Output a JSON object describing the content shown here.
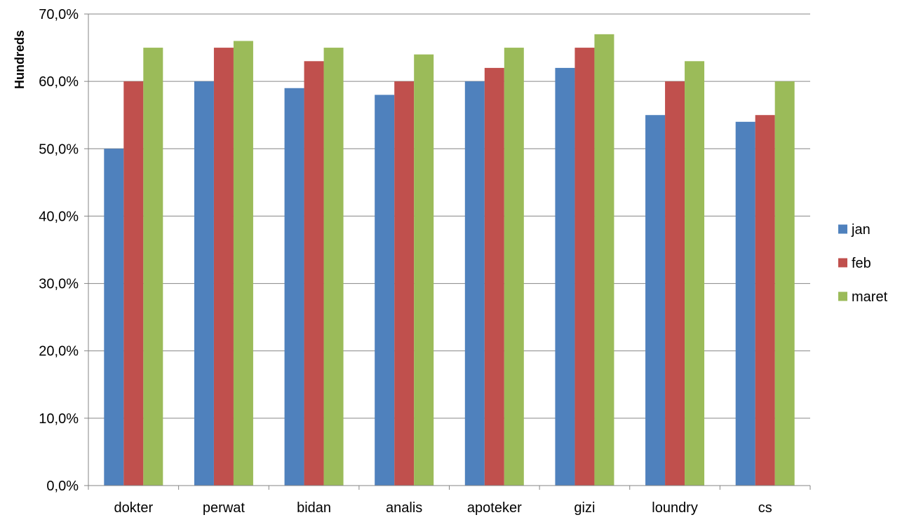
{
  "chart_data": {
    "type": "bar",
    "title": "",
    "xlabel": "",
    "ylabel": "Hundreds",
    "ylim": [
      0,
      70
    ],
    "y_ticks": [
      {
        "value": 0,
        "label": "0,0%"
      },
      {
        "value": 10,
        "label": "10,0%"
      },
      {
        "value": 20,
        "label": "20,0%"
      },
      {
        "value": 30,
        "label": "30,0%"
      },
      {
        "value": 40,
        "label": "40,0%"
      },
      {
        "value": 50,
        "label": "50,0%"
      },
      {
        "value": 60,
        "label": "60,0%"
      },
      {
        "value": 70,
        "label": "70,0%"
      }
    ],
    "grid": true,
    "legend_position": "right",
    "categories": [
      "dokter",
      "perwat",
      "bidan",
      "analis",
      "apoteker",
      "gizi",
      "loundry",
      "cs"
    ],
    "series": [
      {
        "name": "jan",
        "color": "#4F81BD",
        "values": [
          50,
          60,
          59,
          58,
          60,
          62,
          55,
          54
        ]
      },
      {
        "name": "feb",
        "color": "#C0504D",
        "values": [
          60,
          65,
          63,
          60,
          62,
          65,
          60,
          55
        ]
      },
      {
        "name": "maret",
        "color": "#9BBB59",
        "values": [
          65,
          66,
          65,
          64,
          65,
          67,
          63,
          60
        ]
      }
    ]
  }
}
